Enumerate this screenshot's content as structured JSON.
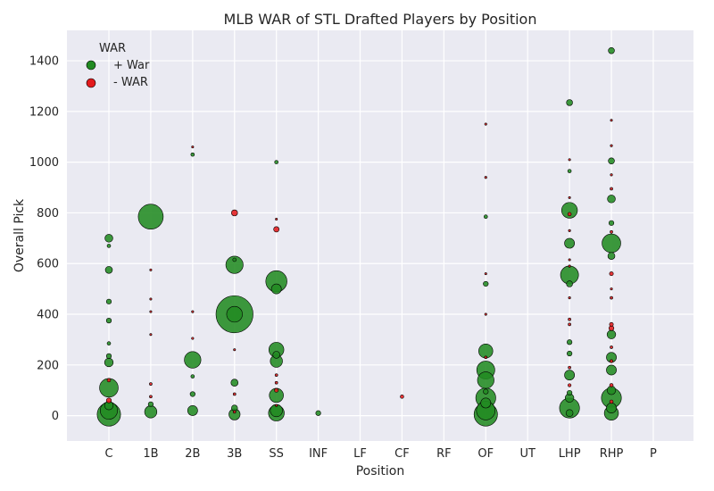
{
  "colors": {
    "background": "#eaeaf2",
    "grid": "#ffffff",
    "positive": "#228b22",
    "negative": "#e31a1c",
    "edge": "#000000"
  },
  "chart_data": {
    "type": "scatter",
    "title": "MLB WAR of STL Drafted Players by Position",
    "xlabel": "Position",
    "ylabel": "Overall Pick",
    "categories": [
      "C",
      "1B",
      "2B",
      "3B",
      "SS",
      "INF",
      "LF",
      "CF",
      "RF",
      "OF",
      "UT",
      "LHP",
      "RHP",
      "P"
    ],
    "ylim": [
      -100,
      1520
    ],
    "yticks": [
      0,
      200,
      400,
      600,
      800,
      1000,
      1200,
      1400
    ],
    "grid": true,
    "legend": {
      "title": "WAR",
      "placement": "top-left",
      "entries": [
        {
          "label": "+ War",
          "color_key": "positive"
        },
        {
          "label": "- WAR",
          "color_key": "negative"
        }
      ]
    },
    "point_size": "proportional to |WAR|",
    "series": [
      {
        "name": "+ War",
        "points": [
          {
            "pos": "C",
            "pick": 5,
            "war": 22
          },
          {
            "pos": "C",
            "pick": 20,
            "war": 12
          },
          {
            "pos": "C",
            "pick": 40,
            "war": 3
          },
          {
            "pos": "C",
            "pick": 110,
            "war": 14
          },
          {
            "pos": "C",
            "pick": 210,
            "war": 3
          },
          {
            "pos": "C",
            "pick": 235,
            "war": 1
          },
          {
            "pos": "C",
            "pick": 285,
            "war": 0.5
          },
          {
            "pos": "C",
            "pick": 375,
            "war": 1
          },
          {
            "pos": "C",
            "pick": 450,
            "war": 1
          },
          {
            "pos": "C",
            "pick": 575,
            "war": 2
          },
          {
            "pos": "C",
            "pick": 670,
            "war": 0.5
          },
          {
            "pos": "C",
            "pick": 700,
            "war": 2.5
          },
          {
            "pos": "1B",
            "pick": 15,
            "war": 6
          },
          {
            "pos": "1B",
            "pick": 45,
            "war": 1
          },
          {
            "pos": "1B",
            "pick": 785,
            "war": 25
          },
          {
            "pos": "2B",
            "pick": 20,
            "war": 4
          },
          {
            "pos": "2B",
            "pick": 85,
            "war": 1
          },
          {
            "pos": "2B",
            "pick": 155,
            "war": 0.5
          },
          {
            "pos": "2B",
            "pick": 220,
            "war": 11
          },
          {
            "pos": "2B",
            "pick": 1030,
            "war": 0.5
          },
          {
            "pos": "3B",
            "pick": 5,
            "war": 5
          },
          {
            "pos": "3B",
            "pick": 30,
            "war": 1.5
          },
          {
            "pos": "3B",
            "pick": 130,
            "war": 2
          },
          {
            "pos": "3B",
            "pick": 400,
            "war": 55
          },
          {
            "pos": "3B",
            "pick": 400,
            "war": 10
          },
          {
            "pos": "3B",
            "pick": 595,
            "war": 12
          },
          {
            "pos": "3B",
            "pick": 615,
            "war": 0.5
          },
          {
            "pos": "SS",
            "pick": 10,
            "war": 10
          },
          {
            "pos": "SS",
            "pick": 20,
            "war": 6
          },
          {
            "pos": "SS",
            "pick": 80,
            "war": 8
          },
          {
            "pos": "SS",
            "pick": 215,
            "war": 6
          },
          {
            "pos": "SS",
            "pick": 240,
            "war": 2
          },
          {
            "pos": "SS",
            "pick": 260,
            "war": 9
          },
          {
            "pos": "SS",
            "pick": 500,
            "war": 4
          },
          {
            "pos": "SS",
            "pick": 530,
            "war": 18
          },
          {
            "pos": "SS",
            "pick": 1000,
            "war": 0.5
          },
          {
            "pos": "INF",
            "pick": 10,
            "war": 1
          },
          {
            "pos": "OF",
            "pick": 5,
            "war": 22
          },
          {
            "pos": "OF",
            "pick": 20,
            "war": 14
          },
          {
            "pos": "OF",
            "pick": 50,
            "war": 4
          },
          {
            "pos": "OF",
            "pick": 70,
            "war": 16
          },
          {
            "pos": "OF",
            "pick": 95,
            "war": 1
          },
          {
            "pos": "OF",
            "pick": 140,
            "war": 11
          },
          {
            "pos": "OF",
            "pick": 180,
            "war": 13
          },
          {
            "pos": "OF",
            "pick": 255,
            "war": 8
          },
          {
            "pos": "OF",
            "pick": 520,
            "war": 1
          },
          {
            "pos": "OF",
            "pick": 785,
            "war": 0.5
          },
          {
            "pos": "LHP",
            "pick": 10,
            "war": 2
          },
          {
            "pos": "LHP",
            "pick": 30,
            "war": 16
          },
          {
            "pos": "LHP",
            "pick": 70,
            "war": 3
          },
          {
            "pos": "LHP",
            "pick": 90,
            "war": 1
          },
          {
            "pos": "LHP",
            "pick": 160,
            "war": 4
          },
          {
            "pos": "LHP",
            "pick": 245,
            "war": 1
          },
          {
            "pos": "LHP",
            "pick": 290,
            "war": 1
          },
          {
            "pos": "LHP",
            "pick": 520,
            "war": 1.5
          },
          {
            "pos": "LHP",
            "pick": 555,
            "war": 13
          },
          {
            "pos": "LHP",
            "pick": 680,
            "war": 4
          },
          {
            "pos": "LHP",
            "pick": 810,
            "war": 10
          },
          {
            "pos": "LHP",
            "pick": 965,
            "war": 0.5
          },
          {
            "pos": "LHP",
            "pick": 1235,
            "war": 1.5
          },
          {
            "pos": "RHP",
            "pick": 10,
            "war": 8
          },
          {
            "pos": "RHP",
            "pick": 30,
            "war": 4
          },
          {
            "pos": "RHP",
            "pick": 70,
            "war": 16
          },
          {
            "pos": "RHP",
            "pick": 100,
            "war": 3
          },
          {
            "pos": "RHP",
            "pick": 180,
            "war": 4
          },
          {
            "pos": "RHP",
            "pick": 230,
            "war": 4
          },
          {
            "pos": "RHP",
            "pick": 320,
            "war": 3
          },
          {
            "pos": "RHP",
            "pick": 630,
            "war": 2
          },
          {
            "pos": "RHP",
            "pick": 680,
            "war": 14
          },
          {
            "pos": "RHP",
            "pick": 760,
            "war": 1
          },
          {
            "pos": "RHP",
            "pick": 855,
            "war": 2.5
          },
          {
            "pos": "RHP",
            "pick": 1005,
            "war": 1.5
          },
          {
            "pos": "RHP",
            "pick": 1440,
            "war": 1.5
          }
        ]
      },
      {
        "name": "- WAR",
        "points": [
          {
            "pos": "C",
            "pick": 60,
            "war": -1
          },
          {
            "pos": "C",
            "pick": 140,
            "war": -0.5
          },
          {
            "pos": "1B",
            "pick": 75,
            "war": -0.3
          },
          {
            "pos": "1B",
            "pick": 125,
            "war": -0.3
          },
          {
            "pos": "1B",
            "pick": 320,
            "war": -0.1
          },
          {
            "pos": "1B",
            "pick": 410,
            "war": -0.1
          },
          {
            "pos": "1B",
            "pick": 460,
            "war": -0.1
          },
          {
            "pos": "1B",
            "pick": 575,
            "war": -0.1
          },
          {
            "pos": "2B",
            "pick": 305,
            "war": -0.2
          },
          {
            "pos": "2B",
            "pick": 410,
            "war": -0.2
          },
          {
            "pos": "2B",
            "pick": 1060,
            "war": -0.1
          },
          {
            "pos": "3B",
            "pick": 15,
            "war": -0.3
          },
          {
            "pos": "3B",
            "pick": 85,
            "war": -0.3
          },
          {
            "pos": "3B",
            "pick": 260,
            "war": -0.1
          },
          {
            "pos": "3B",
            "pick": 800,
            "war": -1.5
          },
          {
            "pos": "SS",
            "pick": 40,
            "war": -0.2
          },
          {
            "pos": "SS",
            "pick": 100,
            "war": -0.6
          },
          {
            "pos": "SS",
            "pick": 130,
            "war": -0.3
          },
          {
            "pos": "SS",
            "pick": 160,
            "war": -0.3
          },
          {
            "pos": "SS",
            "pick": 735,
            "war": -1.2
          },
          {
            "pos": "SS",
            "pick": 775,
            "war": -0.1
          },
          {
            "pos": "CF",
            "pick": 75,
            "war": -0.5
          },
          {
            "pos": "OF",
            "pick": 230,
            "war": -0.3
          },
          {
            "pos": "OF",
            "pick": 400,
            "war": -0.2
          },
          {
            "pos": "OF",
            "pick": 560,
            "war": -0.1
          },
          {
            "pos": "OF",
            "pick": 940,
            "war": -0.2
          },
          {
            "pos": "OF",
            "pick": 1150,
            "war": -0.2
          },
          {
            "pos": "LHP",
            "pick": 120,
            "war": -0.4
          },
          {
            "pos": "LHP",
            "pick": 190,
            "war": -0.3
          },
          {
            "pos": "LHP",
            "pick": 360,
            "war": -0.3
          },
          {
            "pos": "LHP",
            "pick": 380,
            "war": -0.3
          },
          {
            "pos": "LHP",
            "pick": 465,
            "war": -0.2
          },
          {
            "pos": "LHP",
            "pick": 590,
            "war": -0.2
          },
          {
            "pos": "LHP",
            "pick": 615,
            "war": -0.1
          },
          {
            "pos": "LHP",
            "pick": 730,
            "war": -0.2
          },
          {
            "pos": "LHP",
            "pick": 795,
            "war": -0.5
          },
          {
            "pos": "LHP",
            "pick": 860,
            "war": -0.1
          },
          {
            "pos": "LHP",
            "pick": 1010,
            "war": -0.1
          },
          {
            "pos": "RHP",
            "pick": 55,
            "war": -0.5
          },
          {
            "pos": "RHP",
            "pick": 120,
            "war": -0.5
          },
          {
            "pos": "RHP",
            "pick": 215,
            "war": -0.4
          },
          {
            "pos": "RHP",
            "pick": 270,
            "war": -0.3
          },
          {
            "pos": "RHP",
            "pick": 345,
            "war": -1
          },
          {
            "pos": "RHP",
            "pick": 360,
            "war": -0.6
          },
          {
            "pos": "RHP",
            "pick": 465,
            "war": -0.3
          },
          {
            "pos": "RHP",
            "pick": 500,
            "war": -0.2
          },
          {
            "pos": "RHP",
            "pick": 560,
            "war": -0.6
          },
          {
            "pos": "RHP",
            "pick": 725,
            "war": -0.3
          },
          {
            "pos": "RHP",
            "pick": 895,
            "war": -0.3
          },
          {
            "pos": "RHP",
            "pick": 950,
            "war": -0.2
          },
          {
            "pos": "RHP",
            "pick": 1065,
            "war": -0.2
          },
          {
            "pos": "RHP",
            "pick": 1165,
            "war": -0.1
          }
        ]
      }
    ]
  }
}
